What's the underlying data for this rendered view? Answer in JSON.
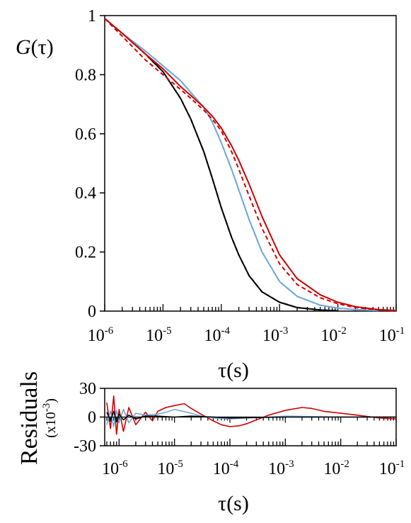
{
  "chart_data": [
    {
      "type": "line",
      "panel": "main",
      "ylabel_italic": "G",
      "ylabel_rest": "(τ)",
      "xlabel": "τ(s)",
      "xscale": "log",
      "xlim": [
        1e-06,
        0.1
      ],
      "ylim": [
        0,
        1
      ],
      "x_tick_labels": [
        {
          "base": "10",
          "exp": "-6"
        },
        {
          "base": "10",
          "exp": "-5"
        },
        {
          "base": "10",
          "exp": "-4"
        },
        {
          "base": "10",
          "exp": "-3"
        },
        {
          "base": "10",
          "exp": "-2"
        },
        {
          "base": "10",
          "exp": "-1"
        }
      ],
      "y_tick_labels": [
        "0",
        "0.2",
        "0.4",
        "0.6",
        "0.8",
        "1"
      ],
      "y_ticks": [
        0,
        0.2,
        0.4,
        0.6,
        0.8,
        1.0
      ],
      "grid": false,
      "series": [
        {
          "color": "#000000",
          "style": "solid",
          "x": [
            1e-06,
            2e-06,
            5e-06,
            1e-05,
            2e-05,
            3e-05,
            5e-05,
            7e-05,
            0.0001,
            0.00015,
            0.0002,
            0.0003,
            0.0005,
            0.001,
            0.002,
            0.005,
            0.01
          ],
          "y": [
            0.99,
            0.94,
            0.87,
            0.81,
            0.72,
            0.65,
            0.54,
            0.45,
            0.35,
            0.25,
            0.19,
            0.12,
            0.065,
            0.03,
            0.012,
            0.004,
            0.001
          ]
        },
        {
          "color": "#000000",
          "style": "dashed",
          "x": [
            1e-06,
            2e-06,
            5e-06,
            1e-05,
            2e-05,
            3e-05,
            5e-05,
            7e-05,
            0.0001,
            0.00015,
            0.0002,
            0.0003,
            0.0005,
            0.001,
            0.002,
            0.005,
            0.01
          ],
          "y": [
            0.99,
            0.94,
            0.87,
            0.81,
            0.72,
            0.65,
            0.54,
            0.45,
            0.35,
            0.25,
            0.19,
            0.12,
            0.065,
            0.03,
            0.012,
            0.004,
            0.001
          ]
        },
        {
          "color": "#6fa8dc",
          "style": "solid",
          "x": [
            1e-06,
            2e-06,
            5e-06,
            1e-05,
            2e-05,
            3e-05,
            5e-05,
            7e-05,
            0.0001,
            0.00015,
            0.0002,
            0.0003,
            0.0005,
            0.001,
            0.002,
            0.005,
            0.01,
            0.02,
            0.05
          ],
          "y": [
            0.99,
            0.94,
            0.88,
            0.83,
            0.78,
            0.74,
            0.69,
            0.64,
            0.57,
            0.48,
            0.41,
            0.31,
            0.2,
            0.1,
            0.05,
            0.02,
            0.01,
            0.005,
            0.002
          ]
        },
        {
          "color": "#6fa8dc",
          "style": "dashed",
          "x": [
            1e-06,
            2e-06,
            5e-06,
            1e-05,
            2e-05,
            3e-05,
            5e-05,
            7e-05,
            0.0001,
            0.00015,
            0.0002,
            0.0003,
            0.0005,
            0.001,
            0.002,
            0.005,
            0.01,
            0.02,
            0.05
          ],
          "y": [
            0.99,
            0.94,
            0.88,
            0.83,
            0.78,
            0.74,
            0.69,
            0.64,
            0.57,
            0.48,
            0.41,
            0.31,
            0.2,
            0.1,
            0.05,
            0.02,
            0.01,
            0.005,
            0.002
          ]
        },
        {
          "color": "#cc0000",
          "style": "solid",
          "x": [
            1e-06,
            2e-06,
            5e-06,
            1e-05,
            2e-05,
            3e-05,
            5e-05,
            7e-05,
            0.0001,
            0.00015,
            0.0002,
            0.0003,
            0.0005,
            0.001,
            0.002,
            0.005,
            0.01,
            0.02,
            0.05,
            0.1
          ],
          "y": [
            0.99,
            0.94,
            0.87,
            0.82,
            0.76,
            0.73,
            0.69,
            0.66,
            0.62,
            0.56,
            0.51,
            0.43,
            0.32,
            0.19,
            0.11,
            0.055,
            0.03,
            0.015,
            0.005,
            0.002
          ]
        },
        {
          "color": "#cc0000",
          "style": "dashed",
          "x": [
            1e-06,
            2e-06,
            5e-06,
            1e-05,
            2e-05,
            3e-05,
            5e-05,
            7e-05,
            0.0001,
            0.00015,
            0.0002,
            0.0003,
            0.0005,
            0.001,
            0.002,
            0.005,
            0.01,
            0.02,
            0.05,
            0.1
          ],
          "y": [
            0.99,
            0.93,
            0.85,
            0.8,
            0.75,
            0.72,
            0.68,
            0.65,
            0.61,
            0.54,
            0.48,
            0.39,
            0.28,
            0.16,
            0.09,
            0.045,
            0.025,
            0.012,
            0.004,
            0.001
          ]
        }
      ]
    },
    {
      "type": "line",
      "panel": "residuals",
      "ylabel": "Residuals",
      "yunit_base": "(x10",
      "yunit_exp": "-3",
      "yunit_close": ")",
      "xlabel": "τ(s)",
      "xscale": "log",
      "xlim": [
        5.5e-07,
        0.1
      ],
      "ylim": [
        -30,
        30
      ],
      "x_tick_values": [
        1e-06,
        1e-05,
        0.0001,
        0.001,
        0.01,
        0.1
      ],
      "x_tick_labels": [
        {
          "base": "10",
          "exp": "-6"
        },
        {
          "base": "10",
          "exp": "-5"
        },
        {
          "base": "10",
          "exp": "-4"
        },
        {
          "base": "10",
          "exp": "-3"
        },
        {
          "base": "10",
          "exp": "-2"
        },
        {
          "base": "10",
          "exp": "-1"
        }
      ],
      "y_tick_labels": [
        "-30",
        "0",
        "30"
      ],
      "y_ticks": [
        -30,
        0,
        30
      ],
      "grid": false,
      "series": [
        {
          "color": "#cc0000",
          "x": [
            6e-07,
            7e-07,
            8e-07,
            9e-07,
            1e-06,
            1.2e-06,
            1.5e-06,
            2e-06,
            3e-06,
            4e-06,
            5e-06,
            7e-06,
            1e-05,
            1.5e-05,
            2e-05,
            3e-05,
            5e-05,
            7e-05,
            0.0001,
            0.00015,
            0.0002,
            0.0003,
            0.0005,
            0.001,
            0.002,
            0.003,
            0.005,
            0.01,
            0.02,
            0.05,
            0.1
          ],
          "y": [
            15,
            -12,
            22,
            -18,
            8,
            -15,
            10,
            -8,
            5,
            -4,
            6,
            10,
            12,
            14,
            9,
            3,
            -4,
            -8,
            -10,
            -9,
            -7,
            -3,
            2,
            7,
            10,
            9,
            6,
            4,
            2,
            -1,
            -2
          ]
        },
        {
          "color": "#6fa8dc",
          "x": [
            6e-07,
            7e-07,
            8e-07,
            9e-07,
            1e-06,
            1.2e-06,
            1.5e-06,
            2e-06,
            3e-06,
            5e-06,
            7e-06,
            1e-05,
            2e-05,
            3e-05,
            5e-05,
            0.0001,
            0.0002,
            0.0005,
            0.001,
            0.01,
            0.1
          ],
          "y": [
            -8,
            6,
            -10,
            7,
            -5,
            8,
            -6,
            4,
            2,
            3,
            5,
            8,
            4,
            1,
            -1,
            -2,
            -1,
            0,
            1,
            0,
            0
          ]
        },
        {
          "color": "#000000",
          "x": [
            6e-07,
            7e-07,
            8e-07,
            9e-07,
            1e-06,
            1.2e-06,
            1.5e-06,
            2e-06,
            3e-06,
            5e-06,
            1e-05,
            2e-05,
            5e-05,
            0.0001,
            0.001,
            0.01,
            0.1
          ],
          "y": [
            5,
            -4,
            6,
            -5,
            3,
            -3,
            2,
            -2,
            1,
            1,
            0,
            1,
            0,
            -1,
            0,
            0,
            0
          ]
        }
      ]
    }
  ]
}
